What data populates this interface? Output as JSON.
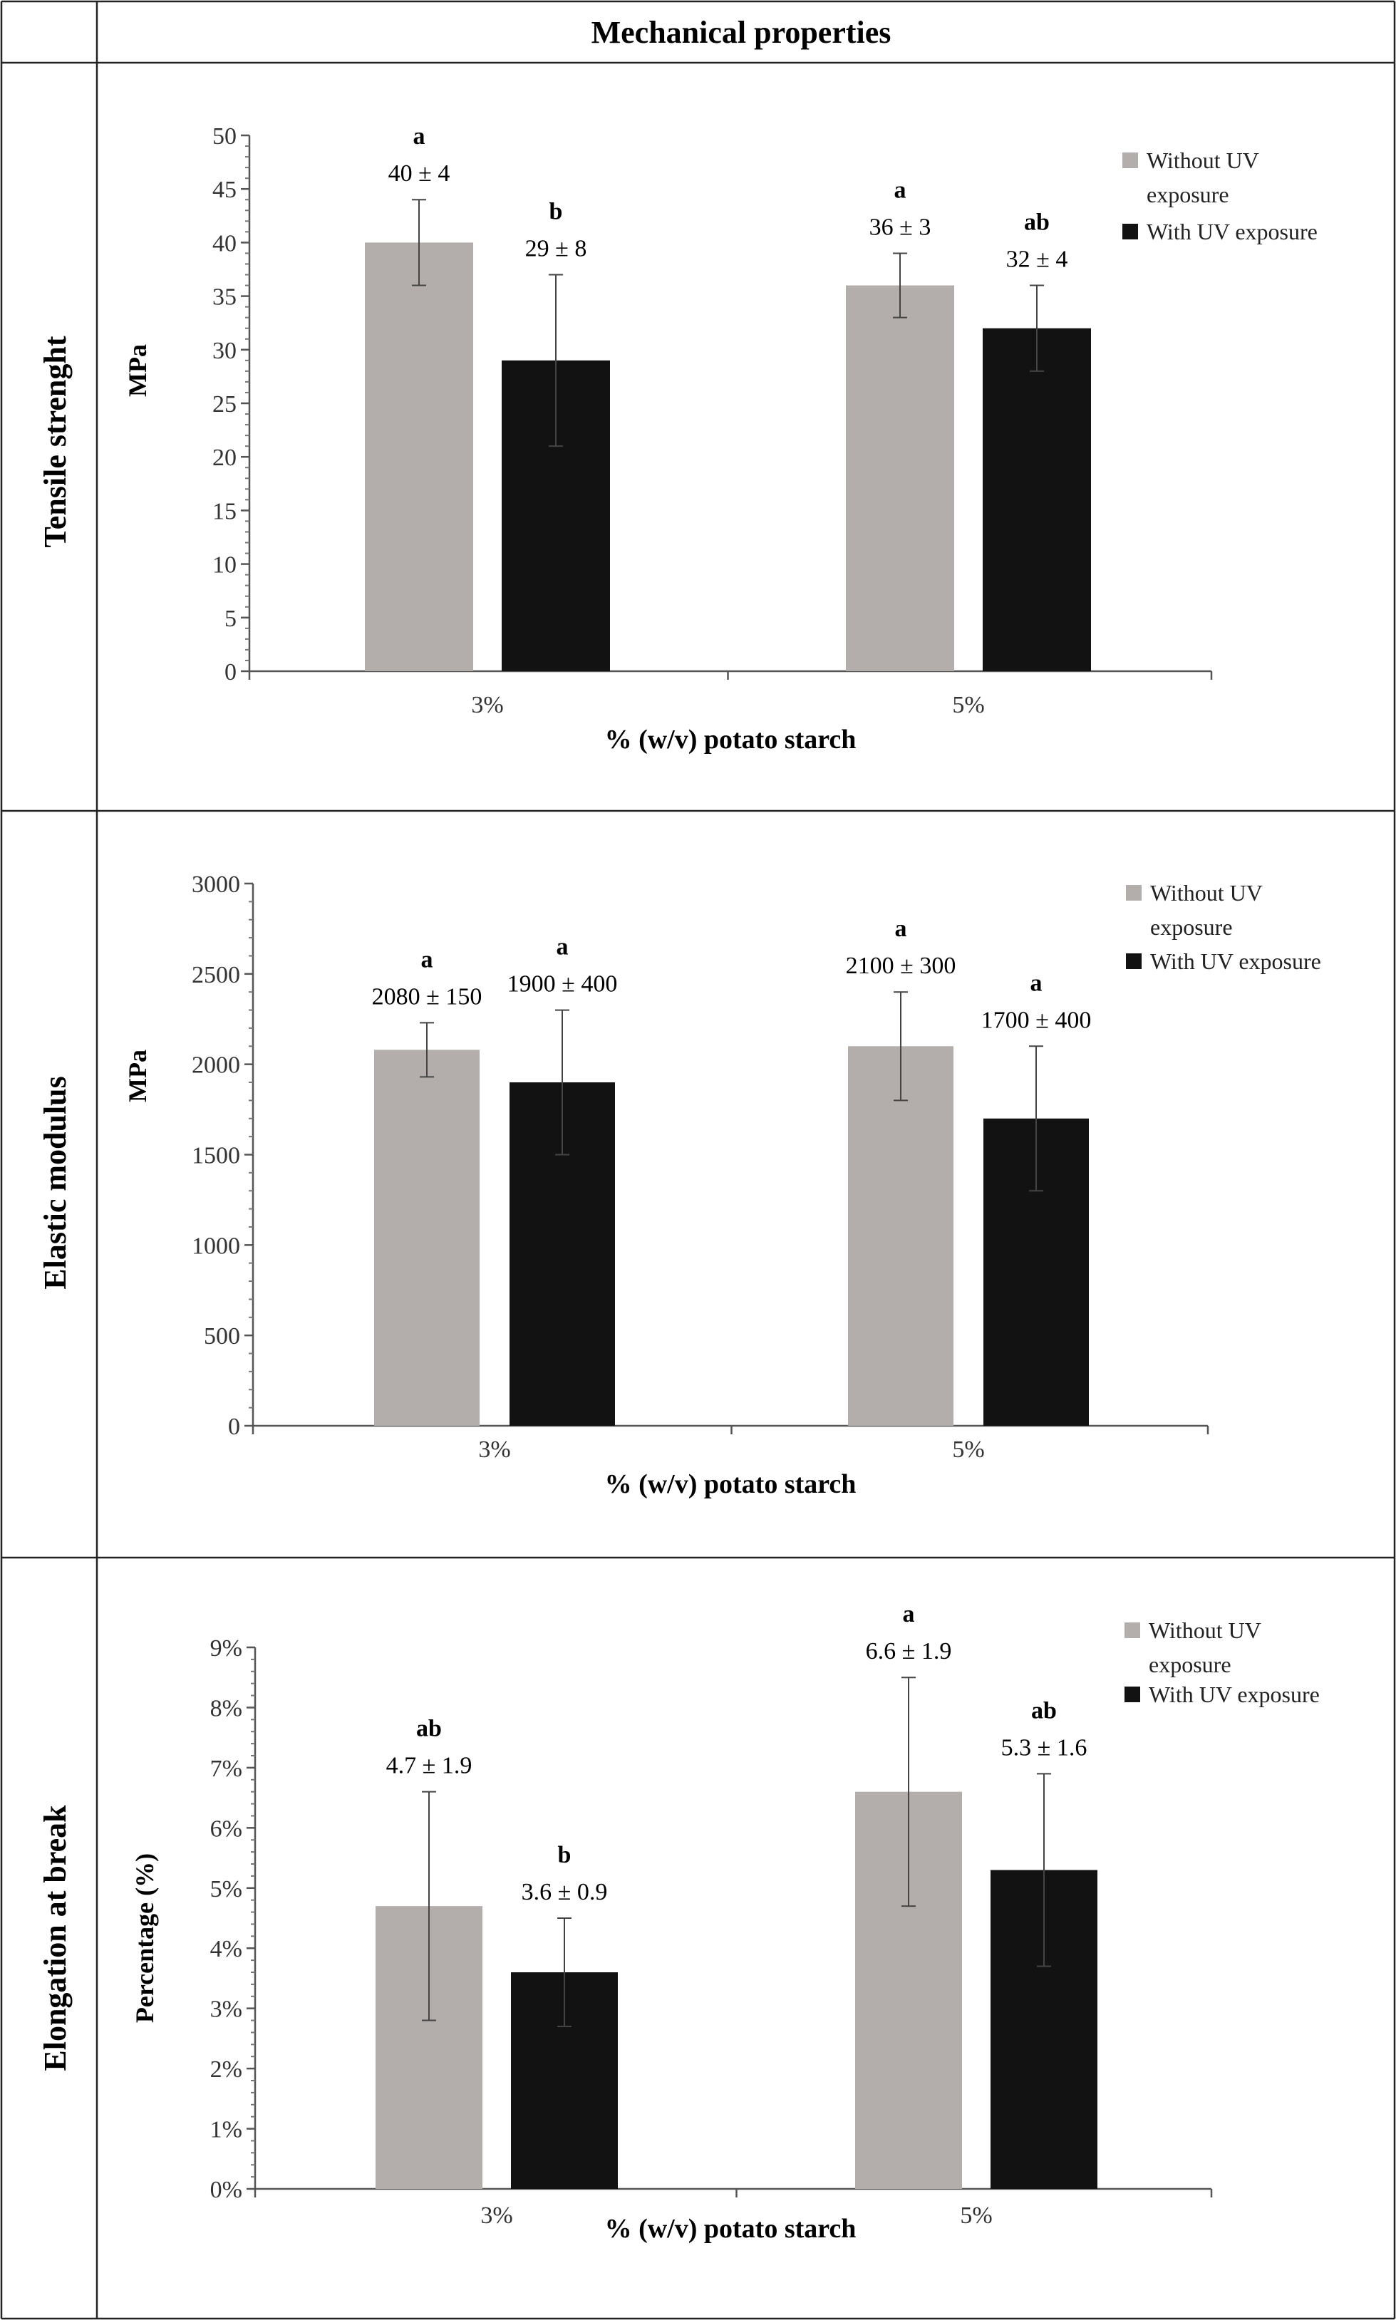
{
  "header": "Mechanical properties",
  "colors": {
    "without_uv": "#b3aeab",
    "with_uv": "#121212",
    "text": "#111111"
  },
  "chart_data": [
    {
      "type": "bar",
      "row_label": "Tensile strenght",
      "ylabel": "MPa",
      "xlabel": "% (w/v) potato starch",
      "ylim": [
        0,
        50
      ],
      "yticks": [
        0,
        5,
        10,
        15,
        20,
        25,
        30,
        35,
        40,
        45,
        50
      ],
      "ytick_labels": [
        "0",
        "5",
        "10",
        "15",
        "20",
        "25",
        "30",
        "35",
        "40",
        "45",
        "50"
      ],
      "categories": [
        "3%",
        "5%"
      ],
      "series": [
        {
          "name": "Without UV exposure",
          "legend_lines": [
            "Without UV",
            "exposure"
          ],
          "values": [
            40,
            36
          ],
          "errors": [
            4,
            3
          ],
          "letters": [
            "a",
            "a"
          ],
          "labels": [
            "40 ± 4",
            "36 ± 3"
          ]
        },
        {
          "name": "With UV exposure",
          "legend_lines": [
            "With UV exposure"
          ],
          "values": [
            29,
            32
          ],
          "errors": [
            8,
            4
          ],
          "letters": [
            "b",
            "ab"
          ],
          "labels": [
            "29 ± 8",
            "32 ± 4"
          ]
        }
      ]
    },
    {
      "type": "bar",
      "row_label": "Elastic modulus",
      "ylabel": "MPa",
      "xlabel": "% (w/v) potato starch",
      "ylim": [
        0,
        3000
      ],
      "yticks": [
        0,
        500,
        1000,
        1500,
        2000,
        2500,
        3000
      ],
      "ytick_labels": [
        "0",
        "500",
        "1000",
        "1500",
        "2000",
        "2500",
        "3000"
      ],
      "categories": [
        "3%",
        "5%"
      ],
      "series": [
        {
          "name": "Without UV exposure",
          "legend_lines": [
            "Without UV",
            "exposure"
          ],
          "values": [
            2080,
            2100
          ],
          "errors": [
            150,
            300
          ],
          "letters": [
            "a",
            "a"
          ],
          "labels": [
            "2080 ± 150",
            "2100 ± 300"
          ]
        },
        {
          "name": "With UV exposure",
          "legend_lines": [
            "With UV exposure"
          ],
          "values": [
            1900,
            1700
          ],
          "errors": [
            400,
            400
          ],
          "letters": [
            "a",
            "a"
          ],
          "labels": [
            "1900 ± 400",
            "1700 ± 400"
          ]
        }
      ]
    },
    {
      "type": "bar",
      "row_label": "Elongation at break",
      "ylabel": "Percentage (%)",
      "xlabel": "% (w/v) potato starch",
      "ylim": [
        0,
        9
      ],
      "yticks": [
        0,
        1,
        2,
        3,
        4,
        5,
        6,
        7,
        8,
        9
      ],
      "ytick_labels": [
        "0%",
        "1%",
        "2%",
        "3%",
        "4%",
        "5%",
        "6%",
        "7%",
        "8%",
        "9%"
      ],
      "categories": [
        "3%",
        "5%"
      ],
      "series": [
        {
          "name": "Without UV exposure",
          "legend_lines": [
            "Without UV",
            "exposure"
          ],
          "values": [
            4.7,
            6.6
          ],
          "errors": [
            1.9,
            1.9
          ],
          "letters": [
            "ab",
            "a"
          ],
          "labels": [
            "4.7 ± 1.9",
            "6.6 ± 1.9"
          ]
        },
        {
          "name": "With UV exposure",
          "legend_lines": [
            "With UV exposure"
          ],
          "values": [
            3.6,
            5.3
          ],
          "errors": [
            0.9,
            1.6
          ],
          "letters": [
            "b",
            "ab"
          ],
          "labels": [
            "3.6 ± 0.9",
            "5.3 ± 1.6"
          ]
        }
      ]
    }
  ]
}
